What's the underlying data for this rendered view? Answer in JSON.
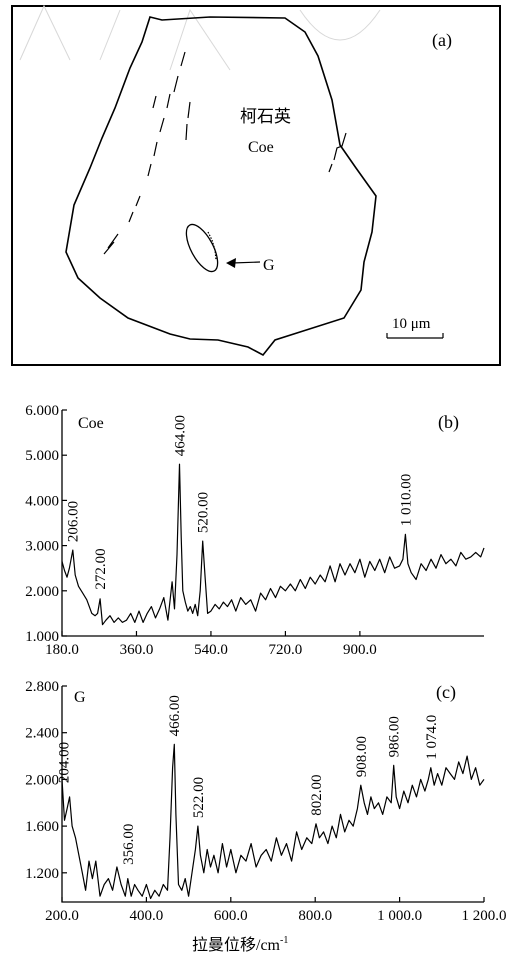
{
  "panel_a": {
    "label": "(a)",
    "mineral_cn": "柯石英",
    "mineral_en": "Coe",
    "inclusion_label": "G",
    "scale_bar": "10 μm"
  },
  "x_axis_title": "拉曼位移/cm",
  "x_axis_title_sup": "-1",
  "chart_data": [
    {
      "type": "line",
      "panel_label": "(b)",
      "sample_label": "Coe",
      "xlim": [
        180,
        1200
      ],
      "ylim": [
        1.0,
        6.0
      ],
      "x_ticks": [
        180,
        360,
        540,
        720,
        900
      ],
      "x_tick_labels": [
        "180.0",
        "360.0",
        "540.0",
        "720.0",
        "900.0"
      ],
      "y_ticks": [
        1,
        2,
        3,
        4,
        5,
        6
      ],
      "y_tick_labels": [
        "1.000",
        "2.000",
        "3.000",
        "4.000",
        "5.000",
        "6.000"
      ],
      "peak_labels": [
        {
          "x": 206,
          "y": 2.9,
          "text": "206.00"
        },
        {
          "x": 272,
          "y": 1.85,
          "text": "272.00"
        },
        {
          "x": 464,
          "y": 4.8,
          "text": "464.00"
        },
        {
          "x": 520,
          "y": 3.1,
          "text": "520.00"
        },
        {
          "x": 1010,
          "y": 3.25,
          "text": "1 010.00"
        }
      ],
      "series": [
        {
          "x": [
            180,
            186,
            192,
            198,
            206,
            212,
            220,
            230,
            240,
            252,
            260,
            266,
            272,
            278,
            286,
            296,
            306,
            316,
            326,
            336,
            346,
            356,
            366,
            376,
            386,
            396,
            406,
            416,
            426,
            436,
            446,
            452,
            458,
            464,
            468,
            472,
            478,
            484,
            490,
            496,
            502,
            508,
            514,
            520,
            526,
            532,
            540,
            550,
            560,
            570,
            580,
            590,
            600,
            612,
            624,
            636,
            648,
            660,
            672,
            684,
            696,
            708,
            720,
            732,
            744,
            756,
            768,
            780,
            792,
            804,
            816,
            828,
            840,
            852,
            864,
            876,
            888,
            900,
            912,
            924,
            936,
            948,
            960,
            972,
            984,
            996,
            1004,
            1010,
            1016,
            1024,
            1036,
            1048,
            1060,
            1072,
            1084,
            1096,
            1108,
            1120,
            1132,
            1144,
            1156,
            1168,
            1180,
            1192,
            1200
          ],
          "y": [
            2.65,
            2.45,
            2.3,
            2.5,
            2.9,
            2.35,
            2.1,
            1.95,
            1.8,
            1.5,
            1.45,
            1.5,
            1.82,
            1.25,
            1.35,
            1.45,
            1.3,
            1.4,
            1.3,
            1.35,
            1.5,
            1.3,
            1.55,
            1.3,
            1.5,
            1.65,
            1.4,
            1.6,
            1.85,
            1.35,
            2.2,
            1.6,
            2.8,
            4.8,
            3.2,
            2.0,
            1.75,
            1.55,
            1.65,
            1.5,
            1.7,
            1.45,
            2.0,
            3.1,
            2.3,
            1.5,
            1.55,
            1.7,
            1.6,
            1.75,
            1.65,
            1.8,
            1.55,
            1.85,
            1.7,
            1.8,
            1.55,
            1.95,
            1.8,
            2.05,
            1.85,
            2.1,
            2.0,
            2.15,
            2.0,
            2.25,
            2.05,
            2.3,
            2.15,
            2.35,
            2.2,
            2.55,
            2.2,
            2.6,
            2.35,
            2.6,
            2.4,
            2.7,
            2.3,
            2.65,
            2.45,
            2.7,
            2.4,
            2.75,
            2.5,
            2.55,
            2.7,
            3.25,
            2.6,
            2.4,
            2.25,
            2.6,
            2.45,
            2.7,
            2.5,
            2.8,
            2.6,
            2.7,
            2.55,
            2.85,
            2.7,
            2.75,
            2.85,
            2.75,
            2.95
          ]
        }
      ]
    },
    {
      "type": "line",
      "panel_label": "(c)",
      "sample_label": "G",
      "xlim": [
        200,
        1200
      ],
      "ylim": [
        0.95,
        2.8
      ],
      "x_ticks": [
        200,
        400,
        600,
        800,
        1000,
        1200
      ],
      "x_tick_labels": [
        "200.0",
        "400.0",
        "600.0",
        "800.0",
        "1 000.0",
        "1 200.0"
      ],
      "y_ticks": [
        1.2,
        1.6,
        2.0,
        2.4,
        2.8
      ],
      "y_tick_labels": [
        "1.200",
        "1.600",
        "2.000",
        "2.400",
        "2.800"
      ],
      "peak_labels": [
        {
          "x": 204,
          "y": 1.9,
          "text": "204.00"
        },
        {
          "x": 356,
          "y": 1.2,
          "text": "356.00"
        },
        {
          "x": 466,
          "y": 2.3,
          "text": "466.00"
        },
        {
          "x": 522,
          "y": 1.6,
          "text": "522.00"
        },
        {
          "x": 802,
          "y": 1.62,
          "text": "802.00"
        },
        {
          "x": 908,
          "y": 1.95,
          "text": "908.00"
        },
        {
          "x": 986,
          "y": 2.12,
          "text": "986.00"
        },
        {
          "x": 1074,
          "y": 2.1,
          "text": "1 074.0"
        }
      ],
      "series": [
        {
          "x": [
            200,
            206,
            212,
            218,
            224,
            232,
            240,
            248,
            256,
            264,
            272,
            280,
            290,
            300,
            310,
            320,
            330,
            340,
            350,
            356,
            364,
            372,
            380,
            390,
            400,
            410,
            420,
            430,
            440,
            450,
            456,
            462,
            466,
            470,
            476,
            484,
            492,
            500,
            508,
            516,
            522,
            528,
            536,
            544,
            552,
            560,
            570,
            580,
            590,
            600,
            612,
            624,
            636,
            648,
            660,
            672,
            684,
            696,
            708,
            720,
            732,
            744,
            756,
            768,
            780,
            792,
            802,
            810,
            820,
            830,
            840,
            850,
            860,
            870,
            880,
            890,
            900,
            908,
            916,
            924,
            932,
            940,
            950,
            960,
            970,
            980,
            986,
            992,
            1000,
            1010,
            1020,
            1030,
            1040,
            1050,
            1060,
            1068,
            1074,
            1082,
            1090,
            1100,
            1110,
            1120,
            1130,
            1140,
            1150,
            1160,
            1170,
            1180,
            1190,
            1200
          ],
          "y": [
            2.0,
            1.65,
            1.75,
            1.85,
            1.6,
            1.5,
            1.35,
            1.2,
            1.05,
            1.3,
            1.15,
            1.3,
            1.0,
            1.1,
            1.15,
            1.05,
            1.25,
            1.1,
            1.0,
            1.15,
            1.0,
            1.1,
            1.05,
            1.0,
            1.1,
            0.98,
            1.05,
            1.0,
            1.1,
            1.05,
            1.5,
            2.1,
            2.3,
            1.7,
            1.1,
            1.05,
            1.15,
            1.0,
            1.2,
            1.4,
            1.6,
            1.35,
            1.2,
            1.4,
            1.25,
            1.35,
            1.2,
            1.45,
            1.25,
            1.4,
            1.2,
            1.35,
            1.3,
            1.45,
            1.25,
            1.35,
            1.4,
            1.3,
            1.5,
            1.35,
            1.45,
            1.3,
            1.55,
            1.4,
            1.5,
            1.45,
            1.62,
            1.5,
            1.55,
            1.45,
            1.6,
            1.5,
            1.7,
            1.55,
            1.65,
            1.6,
            1.75,
            1.95,
            1.8,
            1.7,
            1.85,
            1.75,
            1.8,
            1.7,
            1.85,
            1.8,
            2.12,
            1.85,
            1.75,
            1.9,
            1.8,
            1.95,
            1.85,
            2.0,
            1.9,
            2.0,
            2.1,
            1.95,
            2.05,
            1.95,
            2.1,
            2.05,
            2.0,
            2.15,
            2.05,
            2.2,
            2.0,
            2.1,
            1.95,
            2.0
          ]
        }
      ]
    }
  ]
}
